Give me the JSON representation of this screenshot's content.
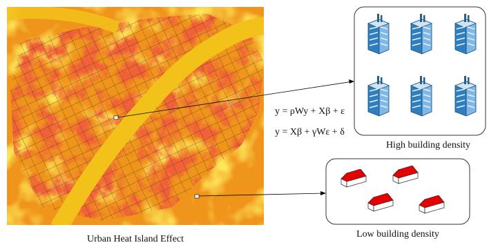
{
  "map": {
    "caption": "Urban Heat Island Effect"
  },
  "equations": [
    "y = ρWy + Xβ + ε",
    "y = Xβ + γWε + δ"
  ],
  "panels": {
    "high": {
      "label": "High building density"
    },
    "low": {
      "label": "Low building density"
    }
  }
}
